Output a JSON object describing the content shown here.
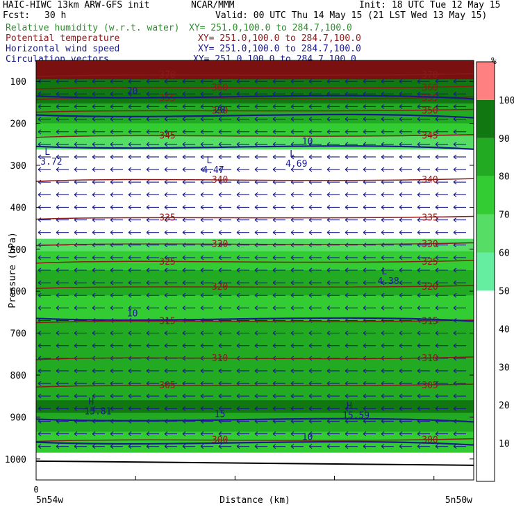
{
  "header": {
    "model": "HAIC-HIWC 13km ARW-GFS init",
    "center": "NCAR/MMM",
    "init": "Init: 18 UTC Tue 12 May 15",
    "fcst_label": "Fcst:",
    "fcst_value": "30 h",
    "valid": "Valid: 00 UTC Thu 14 May 15 (21 LST Wed 13 May 15)",
    "fields": [
      {
        "name": "Relative humidity (w.r.t. water)",
        "xy": "XY= 251.0,100.0 to 284.7,100.0",
        "color": "#2e8b2e"
      },
      {
        "name": "Potential temperature",
        "xy": "XY= 251.0,100.0 to 284.7,100.0",
        "color": "#8b1a1a"
      },
      {
        "name": "Horizontal wind speed",
        "xy": "XY= 251.0,100.0 to 284.7,100.0",
        "color": "#1a1a8b"
      },
      {
        "name": "Circulation vectors",
        "xy": "XY= 251.0,100.0 to 284.7,100.0",
        "color": "#1a1a8b"
      }
    ]
  },
  "chart_data": {
    "type": "heatmap",
    "title": "",
    "ylabel": "Pressure (hPa)",
    "xlabel": "Distance (km)",
    "yticks": [
      100,
      200,
      300,
      400,
      500,
      600,
      700,
      800,
      900,
      1000
    ],
    "ylim": [
      50,
      1050
    ],
    "x_start_label": "5n54w",
    "x_end_label": "5n50w",
    "x_origin": "0",
    "colorbar": {
      "unit": "%",
      "ticks": [
        10,
        20,
        30,
        40,
        50,
        60,
        70,
        80,
        90,
        100
      ],
      "bins": [
        {
          "from": 0,
          "to": 50,
          "color": "#ffffff"
        },
        {
          "from": 50,
          "to": 60,
          "color": "#66eea0"
        },
        {
          "from": 60,
          "to": 70,
          "color": "#55dd66"
        },
        {
          "from": 70,
          "to": 80,
          "color": "#33cc33"
        },
        {
          "from": 80,
          "to": 90,
          "color": "#22aa22"
        },
        {
          "from": 90,
          "to": 100,
          "color": "#117711"
        },
        {
          "from": 100,
          "to": 110,
          "color": "#ff8080"
        }
      ]
    },
    "rh_profile": [
      {
        "p": 60,
        "rh": 105
      },
      {
        "p": 120,
        "rh": 95
      },
      {
        "p": 185,
        "rh": 85
      },
      {
        "p": 215,
        "rh": 75
      },
      {
        "p": 245,
        "rh": 60
      },
      {
        "p": 280,
        "rh": 30
      },
      {
        "p": 460,
        "rh": 30
      },
      {
        "p": 490,
        "rh": 60
      },
      {
        "p": 520,
        "rh": 70
      },
      {
        "p": 580,
        "rh": 80
      },
      {
        "p": 640,
        "rh": 75
      },
      {
        "p": 700,
        "rh": 80
      },
      {
        "p": 780,
        "rh": 85
      },
      {
        "p": 850,
        "rh": 80
      },
      {
        "p": 870,
        "rh": 95
      },
      {
        "p": 910,
        "rh": 85
      },
      {
        "p": 960,
        "rh": 75
      },
      {
        "p": 1010,
        "rh": 30
      }
    ],
    "theta_contours": [
      {
        "label": "370",
        "p": 85
      },
      {
        "label": "360",
        "p": 115
      },
      {
        "label": "355",
        "p": 140
      },
      {
        "label": "350",
        "p": 170
      },
      {
        "label": "345",
        "p": 230
      },
      {
        "label": "340",
        "p": 335
      },
      {
        "label": "335",
        "p": 425
      },
      {
        "label": "330",
        "p": 488
      },
      {
        "label": "325",
        "p": 530
      },
      {
        "label": "320",
        "p": 590
      },
      {
        "label": "315",
        "p": 672
      },
      {
        "label": "310",
        "p": 760
      },
      {
        "label": "305",
        "p": 825
      },
      {
        "label": "300",
        "p": 955
      }
    ],
    "wind_contours": [
      {
        "label": "20",
        "p": 135
      },
      {
        "label": "20",
        "p": 180
      },
      {
        "label": "10",
        "p": 255
      },
      {
        "label": "10",
        "p": 665
      },
      {
        "label": "15",
        "p": 905
      },
      {
        "label": "10",
        "p": 960
      }
    ],
    "extrema": [
      {
        "kind": "L",
        "value": "3.72",
        "x": 0.01,
        "p": 285
      },
      {
        "kind": "L",
        "value": "4.47",
        "x": 0.38,
        "p": 305
      },
      {
        "kind": "L",
        "value": "4.69",
        "x": 0.57,
        "p": 290
      },
      {
        "kind": "L",
        "value": "4.38",
        "x": 0.78,
        "p": 570
      },
      {
        "kind": "H",
        "value": "15.81",
        "x": 0.11,
        "p": 880
      },
      {
        "kind": "H",
        "value": "15.59",
        "x": 0.7,
        "p": 890
      }
    ]
  }
}
